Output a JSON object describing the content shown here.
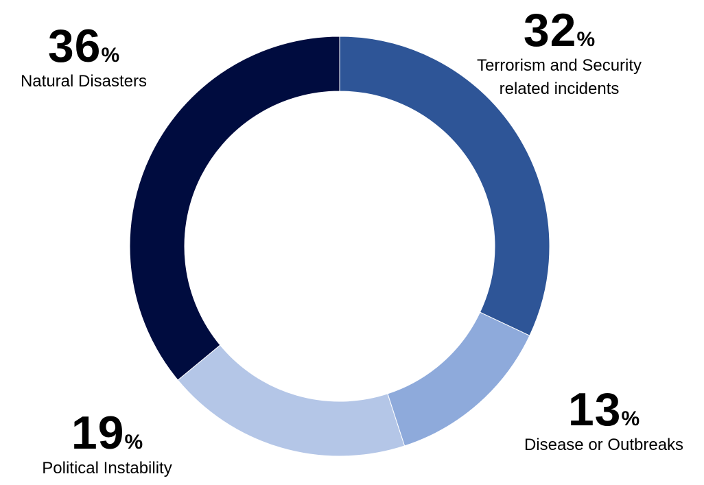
{
  "chart_data": {
    "type": "pie",
    "hole": true,
    "categories": [
      "Terrorism and Security related incidents",
      "Disease or Outbreaks",
      "Political Instability",
      "Natural Disasters"
    ],
    "values": [
      32,
      13,
      19,
      36
    ],
    "colors": [
      "#2e5597",
      "#8eaadb",
      "#b4c6e7",
      "#000c3f"
    ],
    "unit": "%",
    "labels": [
      {
        "value": "32",
        "unit": "%",
        "line1": "Terrorism and Security",
        "line2": "related incidents"
      },
      {
        "value": "13",
        "unit": "%",
        "line1": "Disease or Outbreaks",
        "line2": ""
      },
      {
        "value": "19",
        "unit": "%",
        "line1": "Political Instability",
        "line2": ""
      },
      {
        "value": "36",
        "unit": "%",
        "line1": "Natural Disasters",
        "line2": ""
      }
    ],
    "legend": "none",
    "grid": false
  }
}
